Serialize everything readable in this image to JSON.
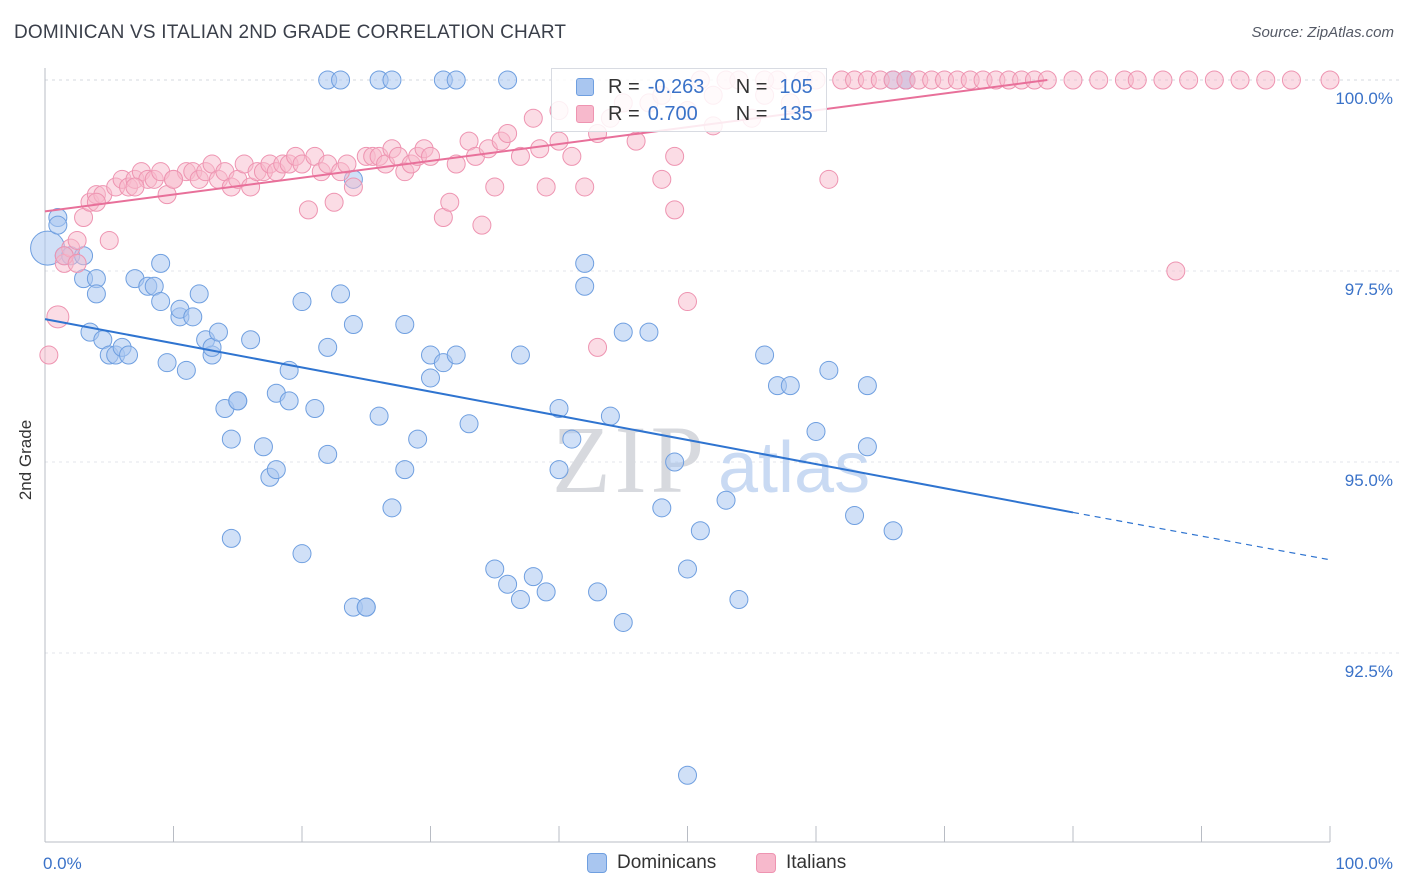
{
  "header": {
    "title": "DOMINICAN VS ITALIAN 2ND GRADE CORRELATION CHART",
    "source": "Source: ZipAtlas.com"
  },
  "watermark": {
    "zip": "ZIP",
    "atlas": "atlas"
  },
  "legend": {
    "rows": [
      {
        "r_label": "R =",
        "r_value": "-0.263",
        "n_label": "N =",
        "n_value": "105"
      },
      {
        "r_label": "R =",
        "r_value": "0.700",
        "n_label": "N =",
        "n_value": "135"
      }
    ]
  },
  "bottom_legend": {
    "items": [
      "Dominicans",
      "Italians"
    ]
  },
  "colors": {
    "dominican_fill": "#a9c6f0",
    "dominican_stroke": "#6f9fe0",
    "dominican_line": "#2f74d0",
    "italian_fill": "#f7b9cc",
    "italian_stroke": "#ee94b1",
    "italian_line": "#e8709a",
    "tick_label": "#3a72c8"
  },
  "chart_data": {
    "type": "scatter",
    "title": "DOMINICAN VS ITALIAN 2ND GRADE CORRELATION CHART",
    "ylabel": "2nd Grade",
    "xlim": [
      0,
      100
    ],
    "ylim": [
      90.6,
      100.2
    ],
    "x_tick_labels": [
      "0.0%",
      "100.0%"
    ],
    "y_ticks": [
      92.5,
      95.0,
      97.5,
      100.0
    ],
    "y_tick_labels": [
      "92.5%",
      "95.0%",
      "97.5%",
      "100.0%"
    ],
    "grid": true,
    "legend_position": "top-center",
    "series": [
      {
        "name": "Dominicans",
        "r": -0.263,
        "n": 105,
        "trend": {
          "x0": 0,
          "y0": 96.87,
          "x1": 80,
          "y1": 94.34,
          "dash_to_x": 100,
          "dash_to_y": 93.72
        },
        "points": [
          [
            0.2,
            97.8
          ],
          [
            1,
            98.2
          ],
          [
            1,
            98.1
          ],
          [
            1.5,
            97.7
          ],
          [
            2,
            97.7
          ],
          [
            3,
            97.7
          ],
          [
            3,
            97.4
          ],
          [
            4,
            97.4
          ],
          [
            4,
            97.2
          ],
          [
            3.5,
            96.7
          ],
          [
            4.5,
            96.6
          ],
          [
            5,
            96.4
          ],
          [
            5.5,
            96.4
          ],
          [
            6,
            96.5
          ],
          [
            6.5,
            96.4
          ],
          [
            7,
            97.4
          ],
          [
            8,
            97.3
          ],
          [
            8.5,
            97.3
          ],
          [
            9,
            97.1
          ],
          [
            9,
            97.6
          ],
          [
            9.5,
            96.3
          ],
          [
            10.5,
            96.9
          ],
          [
            10.5,
            97.0
          ],
          [
            11,
            96.2
          ],
          [
            11.5,
            96.9
          ],
          [
            12,
            97.2
          ],
          [
            12.5,
            96.6
          ],
          [
            13,
            96.4
          ],
          [
            13,
            96.5
          ],
          [
            14,
            95.7
          ],
          [
            14.5,
            95.3
          ],
          [
            15,
            95.8
          ],
          [
            16,
            96.6
          ],
          [
            13.5,
            96.7
          ],
          [
            15,
            95.8
          ],
          [
            14.5,
            94.0
          ],
          [
            17,
            95.2
          ],
          [
            17.5,
            94.8
          ],
          [
            18,
            94.9
          ],
          [
            18,
            95.9
          ],
          [
            19,
            96.2
          ],
          [
            19,
            95.8
          ],
          [
            20,
            97.1
          ],
          [
            20,
            93.8
          ],
          [
            21,
            95.7
          ],
          [
            22,
            95.1
          ],
          [
            22,
            96.5
          ],
          [
            23,
            97.2
          ],
          [
            24,
            96.8
          ],
          [
            24,
            93.1
          ],
          [
            25,
            93.1
          ],
          [
            25,
            93.1
          ],
          [
            26,
            95.6
          ],
          [
            27,
            94.4
          ],
          [
            28,
            96.8
          ],
          [
            28,
            94.9
          ],
          [
            29,
            95.3
          ],
          [
            30,
            96.1
          ],
          [
            30,
            96.4
          ],
          [
            31,
            96.3
          ],
          [
            32,
            96.4
          ],
          [
            33,
            95.5
          ],
          [
            24,
            98.7
          ],
          [
            22,
            100
          ],
          [
            23,
            100
          ],
          [
            26,
            100
          ],
          [
            27,
            100
          ],
          [
            31,
            100
          ],
          [
            32,
            100
          ],
          [
            36,
            100
          ],
          [
            35,
            93.6
          ],
          [
            36,
            93.4
          ],
          [
            37,
            96.4
          ],
          [
            37,
            93.2
          ],
          [
            38,
            93.5
          ],
          [
            39,
            93.3
          ],
          [
            40,
            95.7
          ],
          [
            40,
            94.9
          ],
          [
            41,
            95.3
          ],
          [
            42,
            97.3
          ],
          [
            42,
            97.6
          ],
          [
            43,
            93.3
          ],
          [
            44,
            95.6
          ],
          [
            45,
            96.7
          ],
          [
            45,
            92.9
          ],
          [
            47,
            96.7
          ],
          [
            48,
            94.4
          ],
          [
            49,
            95.0
          ],
          [
            50,
            93.6
          ],
          [
            50,
            90.9
          ],
          [
            51,
            94.1
          ],
          [
            53,
            94.5
          ],
          [
            54,
            93.2
          ],
          [
            56,
            96.4
          ],
          [
            57,
            96.0
          ],
          [
            58,
            96.0
          ],
          [
            60,
            95.4
          ],
          [
            61,
            96.2
          ],
          [
            63,
            94.3
          ],
          [
            64,
            95.2
          ],
          [
            66,
            94.1
          ],
          [
            66,
            100
          ],
          [
            67,
            100
          ],
          [
            64,
            96.0
          ],
          [
            67,
            100
          ]
        ]
      },
      {
        "name": "Italians",
        "r": 0.7,
        "n": 135,
        "trend": {
          "x0": 0,
          "y0": 98.28,
          "x1": 78,
          "y1": 100.0
        },
        "points": [
          [
            0.3,
            96.4
          ],
          [
            1,
            96.9
          ],
          [
            1.5,
            97.6
          ],
          [
            2,
            97.8
          ],
          [
            2.5,
            97.9
          ],
          [
            3,
            98.2
          ],
          [
            3.5,
            98.4
          ],
          [
            4,
            98.5
          ],
          [
            4.5,
            98.5
          ],
          [
            5,
            97.9
          ],
          [
            5.5,
            98.6
          ],
          [
            6,
            98.7
          ],
          [
            6.5,
            98.6
          ],
          [
            7,
            98.7
          ],
          [
            7.5,
            98.8
          ],
          [
            8,
            98.7
          ],
          [
            8.5,
            98.7
          ],
          [
            9,
            98.8
          ],
          [
            9.5,
            98.5
          ],
          [
            10,
            98.7
          ],
          [
            11,
            98.8
          ],
          [
            11.5,
            98.8
          ],
          [
            12,
            98.7
          ],
          [
            12.5,
            98.8
          ],
          [
            13,
            98.9
          ],
          [
            13.5,
            98.7
          ],
          [
            14,
            98.8
          ],
          [
            14.5,
            98.6
          ],
          [
            15,
            98.7
          ],
          [
            15.5,
            98.9
          ],
          [
            16,
            98.6
          ],
          [
            16.5,
            98.8
          ],
          [
            17,
            98.8
          ],
          [
            17.5,
            98.9
          ],
          [
            18,
            98.8
          ],
          [
            18.5,
            98.9
          ],
          [
            19,
            98.9
          ],
          [
            19.5,
            99.0
          ],
          [
            20,
            98.9
          ],
          [
            20.5,
            98.3
          ],
          [
            21,
            99.0
          ],
          [
            21.5,
            98.8
          ],
          [
            22,
            98.9
          ],
          [
            22.5,
            98.4
          ],
          [
            23,
            98.8
          ],
          [
            23.5,
            98.9
          ],
          [
            24,
            98.6
          ],
          [
            25,
            99.0
          ],
          [
            25.5,
            99.0
          ],
          [
            26,
            99.0
          ],
          [
            26.5,
            98.9
          ],
          [
            27,
            99.1
          ],
          [
            27.5,
            99.0
          ],
          [
            28,
            98.8
          ],
          [
            28.5,
            98.9
          ],
          [
            29,
            99.0
          ],
          [
            29.5,
            99.1
          ],
          [
            30,
            99.0
          ],
          [
            31,
            98.2
          ],
          [
            31.5,
            98.4
          ],
          [
            32,
            98.9
          ],
          [
            33,
            99.2
          ],
          [
            33.5,
            99.0
          ],
          [
            34,
            98.1
          ],
          [
            34.5,
            99.1
          ],
          [
            35,
            98.6
          ],
          [
            35.5,
            99.2
          ],
          [
            36,
            99.3
          ],
          [
            37,
            99.0
          ],
          [
            38,
            99.5
          ],
          [
            38.5,
            99.1
          ],
          [
            39,
            98.6
          ],
          [
            40,
            99.6
          ],
          [
            40,
            99.2
          ],
          [
            41,
            99.0
          ],
          [
            42,
            98.6
          ],
          [
            43,
            99.3
          ],
          [
            43,
            96.5
          ],
          [
            44,
            99.5
          ],
          [
            45,
            99.7
          ],
          [
            46,
            99.2
          ],
          [
            47,
            99.7
          ],
          [
            48,
            99.8
          ],
          [
            48,
            98.7
          ],
          [
            49,
            99.0
          ],
          [
            49,
            98.3
          ],
          [
            50,
            99.6
          ],
          [
            50,
            97.1
          ],
          [
            51,
            100
          ],
          [
            52,
            99.4
          ],
          [
            52,
            99.8
          ],
          [
            53,
            100
          ],
          [
            54,
            100
          ],
          [
            55,
            99.5
          ],
          [
            56,
            99.8
          ],
          [
            57,
            100
          ],
          [
            58,
            99.7
          ],
          [
            59,
            100
          ],
          [
            60,
            100
          ],
          [
            61,
            98.7
          ],
          [
            62,
            100
          ],
          [
            63,
            100
          ],
          [
            64,
            100
          ],
          [
            65,
            100
          ],
          [
            66,
            100
          ],
          [
            67,
            100
          ],
          [
            68,
            100
          ],
          [
            69,
            100
          ],
          [
            70,
            100
          ],
          [
            71,
            100
          ],
          [
            72,
            100
          ],
          [
            73,
            100
          ],
          [
            74,
            100
          ],
          [
            75,
            100
          ],
          [
            76,
            100
          ],
          [
            77,
            100
          ],
          [
            78,
            100
          ],
          [
            80,
            100
          ],
          [
            82,
            100
          ],
          [
            84,
            100
          ],
          [
            85,
            100
          ],
          [
            87,
            100
          ],
          [
            89,
            100
          ],
          [
            91,
            100
          ],
          [
            93,
            100
          ],
          [
            95,
            100
          ],
          [
            97,
            100
          ],
          [
            100,
            100
          ],
          [
            88,
            97.5
          ],
          [
            56,
            100
          ],
          [
            1.5,
            97.7
          ],
          [
            2.5,
            97.6
          ],
          [
            4,
            98.4
          ],
          [
            7,
            98.6
          ],
          [
            10,
            98.7
          ]
        ]
      }
    ]
  }
}
